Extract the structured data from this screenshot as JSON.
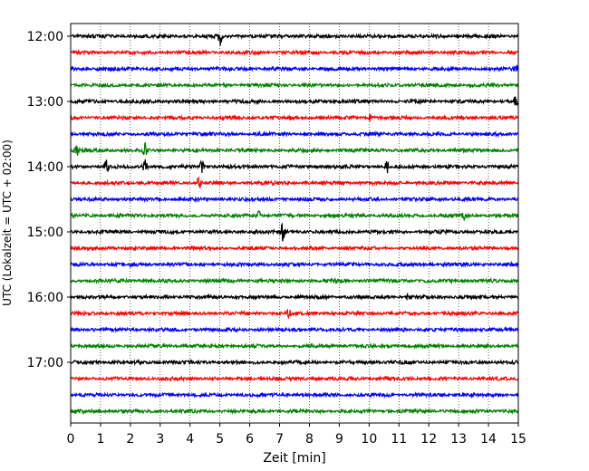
{
  "chart_data": {
    "type": "line",
    "subtype": "helicorder",
    "xlabel": "Zeit  [min]",
    "ylabel": "UTC (Lokalzeit = UTC + 02:00)",
    "xlim": [
      0,
      15
    ],
    "x_ticks": [
      "0",
      "1",
      "2",
      "3",
      "4",
      "5",
      "6",
      "7",
      "8",
      "9",
      "10",
      "11",
      "12",
      "13",
      "14",
      "15"
    ],
    "y_tick_labels": [
      "12:00",
      "13:00",
      "14:00",
      "15:00",
      "16:00",
      "17:00"
    ],
    "grid": "vertical dotted at each minute",
    "colors": [
      "#000000",
      "#ff0000",
      "#0000ff",
      "#008000"
    ],
    "traces": [
      {
        "start": "12:00",
        "events": [
          [
            5.0,
            1.0
          ]
        ]
      },
      {
        "start": "12:15",
        "events": []
      },
      {
        "start": "12:30",
        "events": [
          [
            14.9,
            0.5
          ]
        ]
      },
      {
        "start": "12:45",
        "events": []
      },
      {
        "start": "13:00",
        "events": [
          [
            14.9,
            0.5
          ]
        ]
      },
      {
        "start": "13:15",
        "events": [
          [
            10.0,
            0.4
          ]
        ]
      },
      {
        "start": "13:30",
        "events": []
      },
      {
        "start": "13:45",
        "events": [
          [
            0.2,
            0.6
          ],
          [
            2.5,
            0.7
          ]
        ]
      },
      {
        "start": "14:00",
        "events": [
          [
            1.2,
            0.8
          ],
          [
            2.5,
            0.9
          ],
          [
            4.4,
            0.6
          ],
          [
            10.6,
            0.6
          ]
        ]
      },
      {
        "start": "14:15",
        "events": [
          [
            4.3,
            0.6
          ]
        ]
      },
      {
        "start": "14:30",
        "events": []
      },
      {
        "start": "14:45",
        "events": [
          [
            6.3,
            0.5
          ],
          [
            13.2,
            0.4
          ]
        ]
      },
      {
        "start": "15:00",
        "events": [
          [
            7.1,
            1.0
          ]
        ]
      },
      {
        "start": "15:15",
        "events": []
      },
      {
        "start": "15:30",
        "events": []
      },
      {
        "start": "15:45",
        "events": []
      },
      {
        "start": "16:00",
        "events": [
          [
            11.3,
            0.6
          ]
        ]
      },
      {
        "start": "16:15",
        "events": [
          [
            7.3,
            0.5
          ]
        ]
      },
      {
        "start": "16:30",
        "events": []
      },
      {
        "start": "16:45",
        "events": []
      },
      {
        "start": "17:00",
        "events": []
      },
      {
        "start": "17:15",
        "events": []
      },
      {
        "start": "17:30",
        "events": []
      },
      {
        "start": "17:45",
        "events": []
      }
    ]
  }
}
